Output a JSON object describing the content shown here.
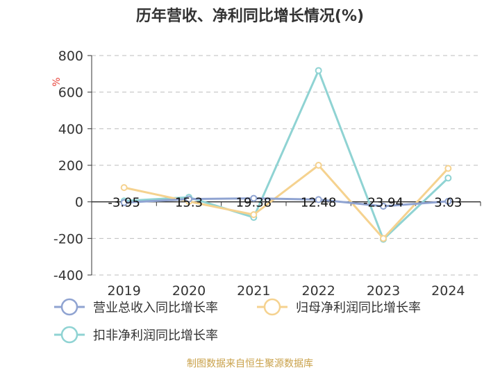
{
  "chart_data": {
    "type": "line",
    "title": "历年营收、净利同比增长情况(%)",
    "ylabel": "%",
    "categories": [
      "2019",
      "2020",
      "2021",
      "2022",
      "2023",
      "2024"
    ],
    "ylim": [
      -400,
      800
    ],
    "yticks": [
      -400,
      -200,
      0,
      200,
      400,
      600,
      800
    ],
    "grid": true,
    "legend_position": "bottom",
    "series": [
      {
        "name": "营业总收入同比增长率",
        "values": [
          -3.95,
          15.3,
          19.38,
          12.48,
          -23.94,
          3.03
        ],
        "labels": [
          "-3.95",
          "15.3",
          "19.38",
          "12.48",
          "-23.94",
          "3.03"
        ],
        "color": "#8fa3d1"
      },
      {
        "name": "归母净利润同比增长率",
        "values": [
          78,
          2,
          -70,
          200,
          -200,
          183
        ],
        "color": "#f5d28f"
      },
      {
        "name": "扣非净利润同比增长率",
        "values": [
          5,
          25,
          -85,
          718,
          -205,
          130
        ],
        "color": "#8fd3d3"
      }
    ]
  },
  "source": "制图数据来自恒生聚源数据库"
}
